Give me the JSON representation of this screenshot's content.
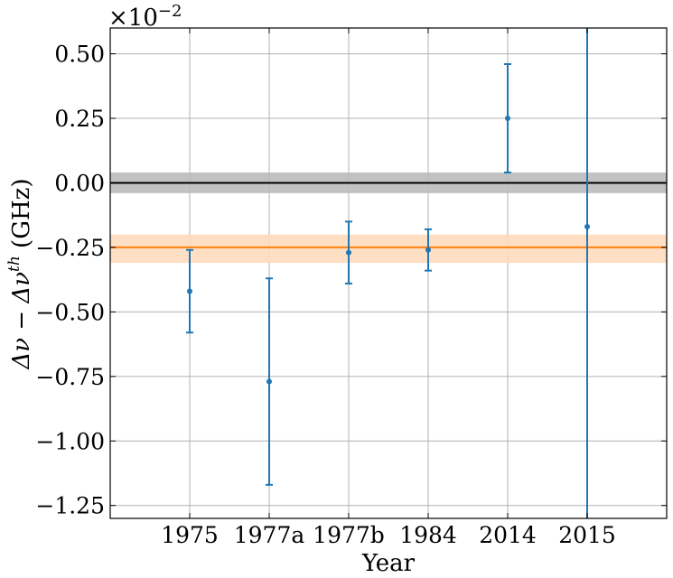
{
  "chart_data": {
    "type": "scatter",
    "xlabel": "Year",
    "ylabel": "Δν − Δν^th (GHz)",
    "ylabel_parts": {
      "main": "Δν − Δν",
      "superscript": "th",
      "unit": " (GHz)"
    },
    "scale_label": {
      "base": "×10",
      "exponent": "−2"
    },
    "categories": [
      "1975",
      "1977a",
      "1977b",
      "1984",
      "2014",
      "2015"
    ],
    "xlim": [
      0,
      7
    ],
    "ylim": [
      -1.3,
      0.6
    ],
    "y_ticks": [
      0.5,
      0.25,
      0.0,
      -0.25,
      -0.5,
      -0.75,
      -1.0,
      -1.25
    ],
    "y_tick_labels": [
      "0.50",
      "0.25",
      "0.00",
      "−0.25",
      "−0.50",
      "−0.75",
      "−1.00",
      "−1.25"
    ],
    "grid": true,
    "series": [
      {
        "values": [
          -0.42,
          -0.77,
          -0.27,
          -0.26,
          0.25,
          -0.17
        ],
        "err_low": [
          0.16,
          0.4,
          0.12,
          0.08,
          0.21,
          1.5
        ],
        "err_high": [
          0.16,
          0.4,
          0.12,
          0.08,
          0.21,
          1.5
        ],
        "color": "#1f77b4"
      }
    ],
    "reference_bands": [
      {
        "value": 0.0,
        "low": -0.04,
        "high": 0.04,
        "line_color": "#000000",
        "fill_color": "#bbbbbb"
      },
      {
        "value": -0.25,
        "low": -0.31,
        "high": -0.2,
        "line_color": "#ff7f0e",
        "fill_color": "#ffdbbd"
      }
    ]
  }
}
